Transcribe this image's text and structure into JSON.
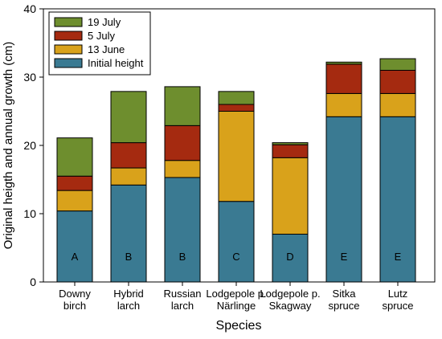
{
  "chart_data": {
    "type": "bar",
    "stacked": true,
    "title": "",
    "xlabel": "Species",
    "ylabel": "Original heigth and annual growth (cm)",
    "ylim": [
      0,
      40
    ],
    "yticks": [
      0,
      10,
      20,
      30,
      40
    ],
    "grid": false,
    "legend_position": "top-left",
    "categories": [
      [
        "Downy",
        "birch"
      ],
      [
        "Hybrid",
        "larch"
      ],
      [
        "Russian",
        "larch"
      ],
      [
        "Lodgepole p.",
        "Närlinge"
      ],
      [
        "Lodgepole p.",
        "Skagway"
      ],
      [
        "Sitka",
        "spruce"
      ],
      [
        "Lutz",
        "spruce"
      ]
    ],
    "bar_letters": [
      "A",
      "B",
      "B",
      "C",
      "D",
      "E",
      "E"
    ],
    "series": [
      {
        "name": "Initial height",
        "color": "#3a7a92",
        "values": [
          10.4,
          14.2,
          15.3,
          11.8,
          7.0,
          24.2,
          24.2
        ]
      },
      {
        "name": "13 June",
        "color": "#d9a21b",
        "values": [
          3.0,
          2.5,
          2.5,
          13.2,
          11.2,
          3.4,
          3.4
        ]
      },
      {
        "name": "5 July",
        "color": "#a52a10",
        "values": [
          2.1,
          3.7,
          5.1,
          1.0,
          1.9,
          4.3,
          3.4
        ]
      },
      {
        "name": "19 July",
        "color": "#6e8e2e",
        "values": [
          5.6,
          7.5,
          5.7,
          1.9,
          0.3,
          0.3,
          1.7
        ]
      }
    ],
    "legend_order": [
      "19 July",
      "5 July",
      "13 June",
      "Initial height"
    ]
  }
}
